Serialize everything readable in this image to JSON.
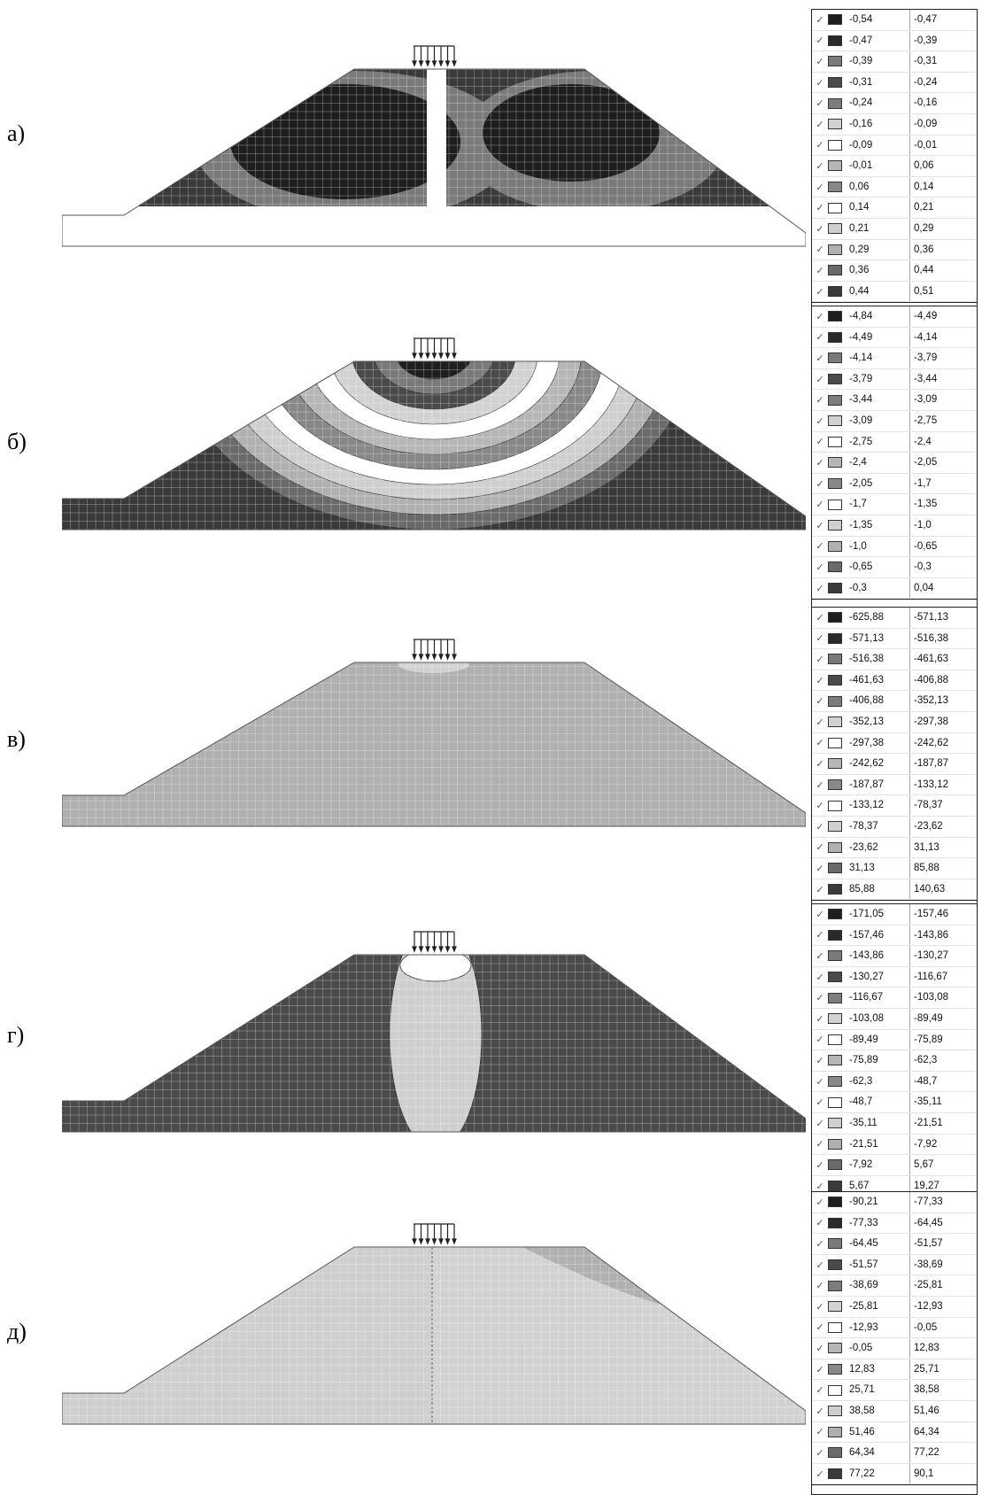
{
  "panels": [
    {
      "id": "a",
      "label": "а)",
      "legend": [
        [
          "-0,54",
          "-0,47",
          "#1e1e1e"
        ],
        [
          "-0,47",
          "-0,39",
          "#2a2a2a"
        ],
        [
          "-0,39",
          "-0,31",
          "#7a7a7a"
        ],
        [
          "-0,31",
          "-0,24",
          "#4a4a4a"
        ],
        [
          "-0,24",
          "-0,16",
          "#7c7c7c"
        ],
        [
          "-0,16",
          "-0,09",
          "#d2d2d2"
        ],
        [
          "-0,09",
          "-0,01",
          "#ffffff"
        ],
        [
          "-0,01",
          "0,06",
          "#b6b6b6"
        ],
        [
          "0,06",
          "0,14",
          "#888888"
        ],
        [
          "0,14",
          "0,21",
          "#ffffff"
        ],
        [
          "0,21",
          "0,29",
          "#cfcfcf"
        ],
        [
          "0,29",
          "0,36",
          "#b0b0b0"
        ],
        [
          "0,36",
          "0,44",
          "#6a6a6a"
        ],
        [
          "0,44",
          "0,51",
          "#3a3a3a"
        ]
      ]
    },
    {
      "id": "b",
      "label": "б)",
      "legend": [
        [
          "-4,84",
          "-4,49",
          "#1e1e1e"
        ],
        [
          "-4,49",
          "-4,14",
          "#2a2a2a"
        ],
        [
          "-4,14",
          "-3,79",
          "#7a7a7a"
        ],
        [
          "-3,79",
          "-3,44",
          "#4a4a4a"
        ],
        [
          "-3,44",
          "-3,09",
          "#7c7c7c"
        ],
        [
          "-3,09",
          "-2,75",
          "#d2d2d2"
        ],
        [
          "-2,75",
          "-2,4",
          "#ffffff"
        ],
        [
          "-2,4",
          "-2,05",
          "#b6b6b6"
        ],
        [
          "-2,05",
          "-1,7",
          "#888888"
        ],
        [
          "-1,7",
          "-1,35",
          "#ffffff"
        ],
        [
          "-1,35",
          "-1,0",
          "#cfcfcf"
        ],
        [
          "-1,0",
          "-0,65",
          "#b0b0b0"
        ],
        [
          "-0,65",
          "-0,3",
          "#6a6a6a"
        ],
        [
          "-0,3",
          "0,04",
          "#3a3a3a"
        ]
      ]
    },
    {
      "id": "v",
      "label": "в)",
      "legend": [
        [
          "-625,88",
          "-571,13",
          "#1e1e1e"
        ],
        [
          "-571,13",
          "-516,38",
          "#2a2a2a"
        ],
        [
          "-516,38",
          "-461,63",
          "#7a7a7a"
        ],
        [
          "-461,63",
          "-406,88",
          "#4a4a4a"
        ],
        [
          "-406,88",
          "-352,13",
          "#7c7c7c"
        ],
        [
          "-352,13",
          "-297,38",
          "#d2d2d2"
        ],
        [
          "-297,38",
          "-242,62",
          "#ffffff"
        ],
        [
          "-242,62",
          "-187,87",
          "#b6b6b6"
        ],
        [
          "-187,87",
          "-133,12",
          "#888888"
        ],
        [
          "-133,12",
          "-78,37",
          "#ffffff"
        ],
        [
          "-78,37",
          "-23,62",
          "#cfcfcf"
        ],
        [
          "-23,62",
          "31,13",
          "#b0b0b0"
        ],
        [
          "31,13",
          "85,88",
          "#6a6a6a"
        ],
        [
          "85,88",
          "140,63",
          "#3a3a3a"
        ]
      ]
    },
    {
      "id": "g",
      "label": "г)",
      "legend": [
        [
          "-171,05",
          "-157,46",
          "#1e1e1e"
        ],
        [
          "-157,46",
          "-143,86",
          "#2a2a2a"
        ],
        [
          "-143,86",
          "-130,27",
          "#7a7a7a"
        ],
        [
          "-130,27",
          "-116,67",
          "#4a4a4a"
        ],
        [
          "-116,67",
          "-103,08",
          "#7c7c7c"
        ],
        [
          "-103,08",
          "-89,49",
          "#d2d2d2"
        ],
        [
          "-89,49",
          "-75,89",
          "#ffffff"
        ],
        [
          "-75,89",
          "-62,3",
          "#b6b6b6"
        ],
        [
          "-62,3",
          "-48,7",
          "#888888"
        ],
        [
          "-48,7",
          "-35,11",
          "#ffffff"
        ],
        [
          "-35,11",
          "-21,51",
          "#cfcfcf"
        ],
        [
          "-21,51",
          "-7,92",
          "#b0b0b0"
        ],
        [
          "-7,92",
          "5,67",
          "#6a6a6a"
        ],
        [
          "5,67",
          "19,27",
          "#3a3a3a"
        ]
      ]
    },
    {
      "id": "d",
      "label": "д)",
      "legend": [
        [
          "-90,21",
          "-77,33",
          "#1e1e1e"
        ],
        [
          "-77,33",
          "-64,45",
          "#2a2a2a"
        ],
        [
          "-64,45",
          "-51,57",
          "#7a7a7a"
        ],
        [
          "-51,57",
          "-38,69",
          "#4a4a4a"
        ],
        [
          "-38,69",
          "-25,81",
          "#7c7c7c"
        ],
        [
          "-25,81",
          "-12,93",
          "#d2d2d2"
        ],
        [
          "-12,93",
          "-0,05",
          "#ffffff"
        ],
        [
          "-0,05",
          "12,83",
          "#b6b6b6"
        ],
        [
          "12,83",
          "25,71",
          "#888888"
        ],
        [
          "25,71",
          "38,58",
          "#ffffff"
        ],
        [
          "38,58",
          "51,46",
          "#cfcfcf"
        ],
        [
          "51,46",
          "64,34",
          "#b0b0b0"
        ],
        [
          "64,34",
          "77,22",
          "#6a6a6a"
        ],
        [
          "77,22",
          "90,1",
          "#3a3a3a"
        ]
      ]
    }
  ],
  "check_glyph": "✓"
}
